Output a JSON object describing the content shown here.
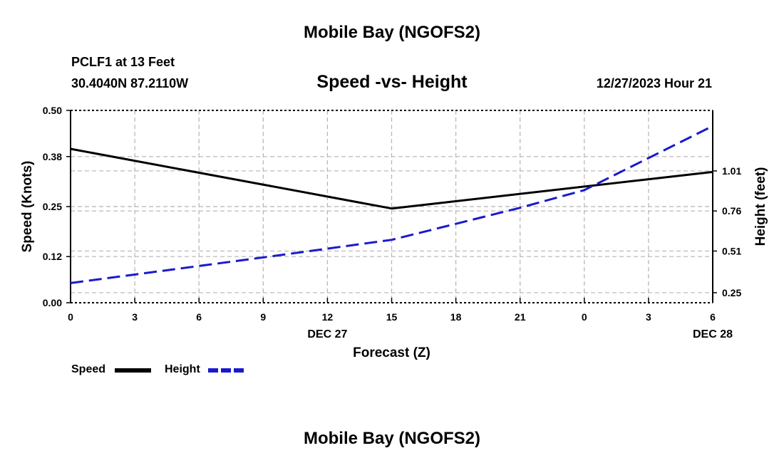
{
  "page": {
    "title": "Mobile Bay (NGOFS2)",
    "station_label": "PCLF1 at 13 Feet",
    "coordinates": "30.4040N  87.2110W",
    "chart_title": "Speed -vs- Height",
    "datetime": "12/27/2023 Hour 21",
    "footer_title": "Mobile Bay (NGOFS2)"
  },
  "legend": {
    "speed_label": "Speed",
    "height_label": "Height"
  },
  "colors": {
    "speed": "#000000",
    "height": "#1a1acc",
    "grid": "#b4b4b4"
  },
  "chart_data": {
    "type": "line",
    "title": "Speed -vs- Height",
    "xlabel": "Forecast (Z)",
    "ylabel": "Speed (Knots)",
    "y2label": "Height (feet)",
    "x_ticks": [
      "0",
      "3",
      "6",
      "9",
      "12",
      "15",
      "18",
      "21",
      "0",
      "3",
      "6"
    ],
    "date_labels": [
      {
        "label": "DEC 27",
        "at_hour": 12
      },
      {
        "label": "DEC 28",
        "at_hour": 30
      }
    ],
    "xlim": [
      0,
      30
    ],
    "ylim": [
      0,
      0.5
    ],
    "y_ticks": [
      0.0,
      0.12,
      0.25,
      0.38,
      0.5
    ],
    "y_tick_labels": [
      "0.00",
      "0.12",
      "0.25",
      "0.38",
      "0.50"
    ],
    "y2lim": [
      0.1875,
      1.3875
    ],
    "y2_ticks": [
      0.25,
      0.51,
      0.76,
      1.01
    ],
    "y2_tick_labels": [
      "0.25",
      "0.51",
      "0.76",
      "1.01"
    ],
    "grid": true,
    "series": [
      {
        "name": "Speed",
        "axis": "left",
        "style": "solid",
        "x": [
          0,
          15,
          30
        ],
        "values": [
          0.4,
          0.245,
          0.34
        ]
      },
      {
        "name": "Height",
        "axis": "right",
        "style": "dashed",
        "x": [
          0,
          9,
          15,
          21,
          24,
          30
        ],
        "values": [
          0.31,
          0.47,
          0.58,
          0.78,
          0.89,
          1.29
        ]
      }
    ]
  }
}
